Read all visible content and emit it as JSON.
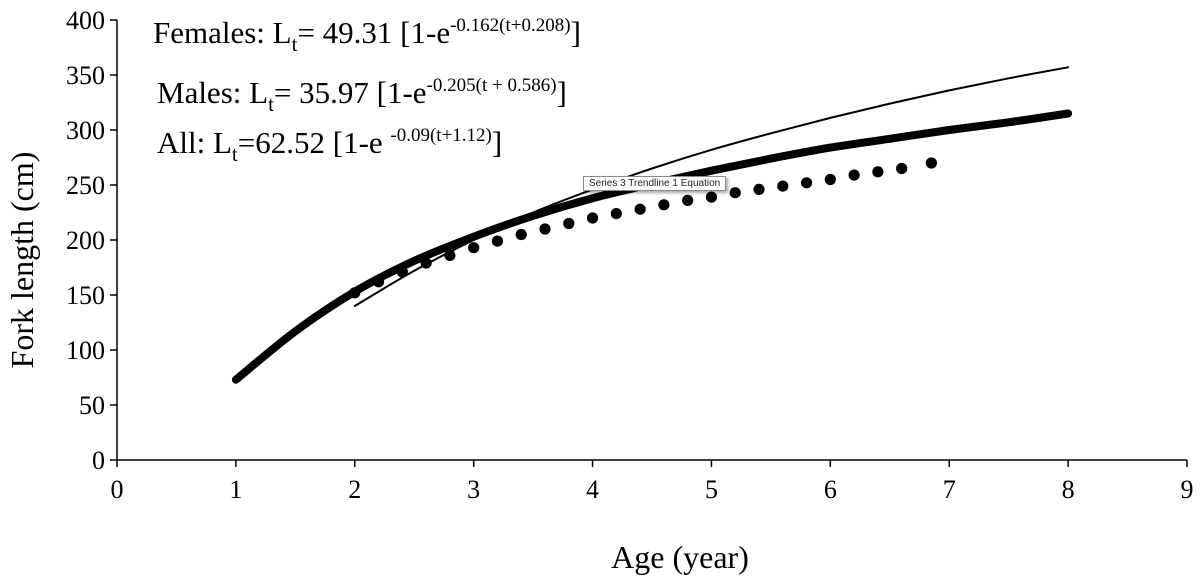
{
  "chart_data": {
    "type": "line",
    "title": "",
    "xlabel": "Age (year)",
    "ylabel": "Fork length (cm)",
    "xlim": [
      0,
      9
    ],
    "ylim": [
      0,
      400
    ],
    "x_ticks": [
      "0",
      "1",
      "2",
      "3",
      "4",
      "5",
      "6",
      "7",
      "8",
      "9"
    ],
    "y_ticks": [
      "0",
      "50",
      "100",
      "150",
      "200",
      "250",
      "300",
      "350",
      "400"
    ],
    "grid": false,
    "series": [
      {
        "name": "Females",
        "style": "thin-solid",
        "x": [
          2.0,
          2.5,
          3.0,
          3.5,
          4.0,
          4.5,
          5.0,
          5.5,
          6.0,
          6.5,
          7.0,
          7.5,
          8.0
        ],
        "y": [
          140,
          172,
          200,
          225,
          246,
          265,
          282,
          297,
          311,
          324,
          336,
          347,
          357
        ]
      },
      {
        "name": "Males",
        "style": "dotted",
        "x": [
          2.0,
          2.2,
          2.4,
          2.6,
          2.8,
          3.0,
          3.2,
          3.4,
          3.6,
          3.8,
          4.0,
          4.2,
          4.4,
          4.6,
          4.8,
          5.0,
          5.2,
          5.4,
          5.6,
          5.8,
          6.0,
          6.2,
          6.4,
          6.6,
          6.85
        ],
        "y": [
          152,
          162,
          171,
          179,
          186,
          193,
          199,
          205,
          210,
          215,
          220,
          224,
          228,
          232,
          236,
          239,
          243,
          246,
          249,
          252,
          255,
          259,
          262,
          265,
          270
        ]
      },
      {
        "name": "All",
        "style": "thick-solid",
        "x": [
          1.0,
          1.5,
          2.0,
          2.5,
          3.0,
          3.5,
          4.0,
          4.5,
          5.0,
          5.5,
          6.0,
          6.5,
          7.0,
          7.5,
          8.0
        ],
        "y": [
          73,
          117,
          153,
          181,
          203,
          222,
          238,
          251,
          263,
          274,
          284,
          292,
          300,
          307,
          315
        ]
      }
    ],
    "annotations": [
      {
        "label": "Females: L",
        "sub": "t",
        "mid": "= 49.31 [1-e",
        "sup": "-0.162(t+0.208)",
        "end": "]"
      },
      {
        "label": "Males: L",
        "sub": "t",
        "mid": "= 35.97 [1-e",
        "sup": "-0.205(t + 0.586)",
        "end": "]"
      },
      {
        "label": "All: L",
        "sub": "t",
        "mid": "=62.52 [1-e ",
        "sup": "-0.09(t+1.12)",
        "end": "]"
      }
    ],
    "tooltip": "Series 3 Trendline 1 Equation"
  }
}
